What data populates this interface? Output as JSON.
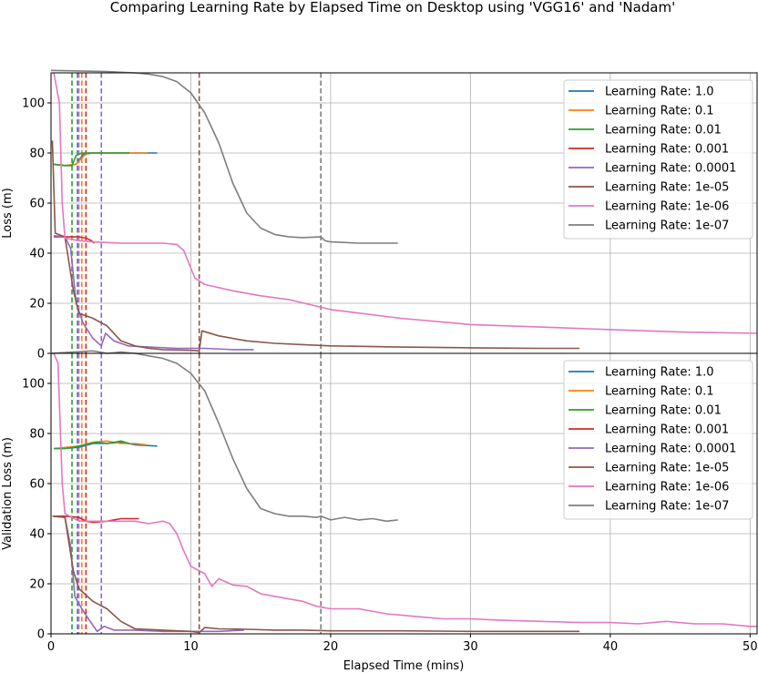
{
  "chart_data": {
    "type": "line",
    "title": "Comparing Learning Rate by Elapsed Time on Desktop using 'VGG16' and 'Nadam'",
    "xlabel": "Elapsed Time (mins)",
    "xlim": [
      0,
      50.5
    ],
    "x_ticks": [
      "0",
      "10",
      "20",
      "30",
      "40",
      "50"
    ],
    "grid": true,
    "legend_position": "top-right",
    "subplots": [
      {
        "ylabel": "Loss (m)",
        "ylim": [
          0,
          112
        ],
        "y_ticks": [
          "0",
          "20",
          "40",
          "60",
          "80",
          "100"
        ]
      },
      {
        "ylabel": "Validation Loss (m)",
        "ylim": [
          0,
          112
        ],
        "y_ticks": [
          "0",
          "20",
          "40",
          "60",
          "80",
          "100"
        ]
      }
    ],
    "series": [
      {
        "name": "Learning Rate: 1.0",
        "color": "#1f77b4",
        "vline": 1.9,
        "loss": [
          [
            0.2,
            75.5
          ],
          [
            1.0,
            75
          ],
          [
            1.8,
            75.5
          ],
          [
            2.3,
            79.5
          ],
          [
            3,
            80
          ],
          [
            5,
            80
          ],
          [
            6.5,
            80
          ],
          [
            7.6,
            80
          ]
        ],
        "val_loss": [
          [
            0.2,
            74
          ],
          [
            1.0,
            74
          ],
          [
            2,
            74.5
          ],
          [
            3,
            76
          ],
          [
            4,
            76
          ],
          [
            5,
            76.5
          ],
          [
            6,
            75.5
          ],
          [
            7.6,
            75
          ]
        ]
      },
      {
        "name": "Learning Rate: 0.1",
        "color": "#ff7f0e",
        "vline": 2.2,
        "loss": [
          [
            0.2,
            75.5
          ],
          [
            1.0,
            75
          ],
          [
            1.8,
            75.5
          ],
          [
            2.2,
            78
          ],
          [
            2.6,
            80
          ],
          [
            4,
            80
          ],
          [
            6,
            80
          ],
          [
            6.9,
            80
          ]
        ],
        "val_loss": [
          [
            0.2,
            74
          ],
          [
            1.2,
            74.5
          ],
          [
            2,
            75
          ],
          [
            3,
            76.5
          ],
          [
            4,
            77
          ],
          [
            5,
            76
          ],
          [
            6,
            76
          ],
          [
            6.8,
            75.5
          ]
        ]
      },
      {
        "name": "Learning Rate: 0.01",
        "color": "#2ca02c",
        "vline": 1.5,
        "loss": [
          [
            0.2,
            75.5
          ],
          [
            1.0,
            75
          ],
          [
            1.5,
            75
          ],
          [
            1.8,
            79
          ],
          [
            2.2,
            80
          ],
          [
            3,
            80
          ],
          [
            4,
            80
          ],
          [
            5.6,
            80
          ]
        ],
        "val_loss": [
          [
            0.2,
            74
          ],
          [
            1.0,
            74
          ],
          [
            1.6,
            74.5
          ],
          [
            2.4,
            75.5
          ],
          [
            3.2,
            76.5
          ],
          [
            4,
            76
          ],
          [
            5,
            77
          ],
          [
            5.6,
            76
          ]
        ]
      },
      {
        "name": "Learning Rate: 0.001",
        "color": "#d62728",
        "vline": 2.5,
        "loss": [
          [
            0.2,
            46.5
          ],
          [
            1,
            46.5
          ],
          [
            2,
            46.5
          ],
          [
            2.5,
            46
          ],
          [
            2.9,
            45
          ],
          [
            3.1,
            44
          ]
        ],
        "val_loss": [
          [
            0.2,
            47
          ],
          [
            1,
            47
          ],
          [
            2,
            46.5
          ],
          [
            2.5,
            45
          ],
          [
            3,
            44.5
          ],
          [
            4,
            45
          ],
          [
            5,
            46
          ],
          [
            6.3,
            46
          ]
        ]
      },
      {
        "name": "Learning Rate: 0.0001",
        "color": "#9467bd",
        "vline": 3.6,
        "loss": [
          [
            0.2,
            47
          ],
          [
            1,
            46.5
          ],
          [
            1.4,
            42
          ],
          [
            1.8,
            20
          ],
          [
            2.3,
            12
          ],
          [
            3,
            6
          ],
          [
            3.6,
            3
          ],
          [
            3.9,
            8
          ],
          [
            4.5,
            5
          ],
          [
            5.5,
            3
          ],
          [
            7,
            2.5
          ],
          [
            9,
            2
          ],
          [
            11,
            2
          ],
          [
            13,
            1.5
          ],
          [
            14.5,
            1.5
          ]
        ],
        "val_loss": [
          [
            0.2,
            47
          ],
          [
            1,
            46.5
          ],
          [
            1.4,
            35
          ],
          [
            1.7,
            15
          ],
          [
            2.2,
            10
          ],
          [
            2.8,
            5
          ],
          [
            3.3,
            1
          ],
          [
            3.8,
            3
          ],
          [
            4.5,
            1.5
          ],
          [
            6,
            1.5
          ],
          [
            8,
            1
          ],
          [
            10,
            1
          ],
          [
            12,
            1
          ],
          [
            13.8,
            1.5
          ]
        ]
      },
      {
        "name": "Learning Rate: 1e-05",
        "color": "#8c564b",
        "vline": 10.6,
        "loss": [
          [
            0.1,
            85
          ],
          [
            0.3,
            48
          ],
          [
            1,
            46.5
          ],
          [
            1.6,
            25
          ],
          [
            2,
            16
          ],
          [
            3,
            14
          ],
          [
            4,
            11
          ],
          [
            5,
            5
          ],
          [
            6,
            3
          ],
          [
            7,
            2
          ],
          [
            8,
            1.5
          ],
          [
            10,
            1.2
          ],
          [
            10.6,
            1
          ],
          [
            10.8,
            9
          ],
          [
            12,
            7
          ],
          [
            14,
            5
          ],
          [
            16,
            4
          ],
          [
            18,
            3.5
          ],
          [
            20,
            3
          ],
          [
            25,
            2.5
          ],
          [
            30,
            2.2
          ],
          [
            35,
            2
          ],
          [
            37.8,
            2
          ]
        ],
        "val_loss": [
          [
            0.1,
            47
          ],
          [
            1,
            46.5
          ],
          [
            1.6,
            25
          ],
          [
            2,
            18
          ],
          [
            3,
            13
          ],
          [
            4,
            10
          ],
          [
            5,
            5
          ],
          [
            6,
            2
          ],
          [
            8,
            1.5
          ],
          [
            10,
            1
          ],
          [
            10.6,
            0.5
          ],
          [
            11,
            2.5
          ],
          [
            12,
            2
          ],
          [
            14,
            1.8
          ],
          [
            16,
            1.5
          ],
          [
            18,
            1.5
          ],
          [
            20,
            1.2
          ],
          [
            25,
            1.2
          ],
          [
            30,
            1
          ],
          [
            35,
            1
          ],
          [
            37.8,
            1
          ]
        ]
      },
      {
        "name": "Learning Rate: 1e-06",
        "color": "#e377c2",
        "vline": 2.0,
        "loss": [
          [
            0.2,
            112
          ],
          [
            0.6,
            100
          ],
          [
            0.8,
            60
          ],
          [
            1,
            46
          ],
          [
            2,
            45
          ],
          [
            3,
            44.5
          ],
          [
            5,
            44
          ],
          [
            8,
            44
          ],
          [
            9,
            43.5
          ],
          [
            9.5,
            41
          ],
          [
            10,
            34
          ],
          [
            10.3,
            30
          ],
          [
            11,
            27.5
          ],
          [
            13,
            25
          ],
          [
            15,
            23
          ],
          [
            17,
            21.5
          ],
          [
            20,
            17.5
          ],
          [
            25,
            14
          ],
          [
            30,
            11.5
          ],
          [
            35,
            10.5
          ],
          [
            40,
            9.5
          ],
          [
            45,
            8.5
          ],
          [
            50.5,
            8
          ]
        ],
        "val_loss": [
          [
            0.2,
            112
          ],
          [
            0.5,
            108
          ],
          [
            0.8,
            60
          ],
          [
            1,
            48
          ],
          [
            2,
            45
          ],
          [
            4,
            45
          ],
          [
            6,
            45
          ],
          [
            7,
            44
          ],
          [
            8,
            45
          ],
          [
            8.5,
            44
          ],
          [
            9,
            40
          ],
          [
            9.5,
            33
          ],
          [
            10,
            27
          ],
          [
            11,
            24
          ],
          [
            11.5,
            19
          ],
          [
            12,
            22
          ],
          [
            13,
            19.5
          ],
          [
            14,
            19
          ],
          [
            15,
            16
          ],
          [
            16,
            15
          ],
          [
            18,
            13
          ],
          [
            19,
            11
          ],
          [
            20,
            10
          ],
          [
            22,
            10
          ],
          [
            24,
            8
          ],
          [
            26,
            7
          ],
          [
            28,
            6
          ],
          [
            30,
            6
          ],
          [
            32,
            5.5
          ],
          [
            35,
            5
          ],
          [
            38,
            4.5
          ],
          [
            40,
            4.5
          ],
          [
            42,
            4
          ],
          [
            44,
            5
          ],
          [
            46,
            4
          ],
          [
            48,
            4
          ],
          [
            50,
            3
          ],
          [
            50.5,
            3
          ]
        ]
      },
      {
        "name": "Learning Rate: 1e-07",
        "color": "#7f7f7f",
        "vline": 19.3,
        "loss": [
          [
            0,
            113
          ],
          [
            4,
            112.5
          ],
          [
            6,
            112
          ],
          [
            7,
            111.5
          ],
          [
            8,
            110.5
          ],
          [
            9,
            108.5
          ],
          [
            10,
            104
          ],
          [
            11,
            96
          ],
          [
            12,
            84
          ],
          [
            13,
            68
          ],
          [
            14,
            56
          ],
          [
            15,
            50
          ],
          [
            16,
            47.5
          ],
          [
            17,
            46.5
          ],
          [
            18,
            46.2
          ],
          [
            19.3,
            46.5
          ],
          [
            19.6,
            45
          ],
          [
            20,
            44.5
          ],
          [
            22,
            44
          ],
          [
            24,
            44
          ],
          [
            24.8,
            44
          ]
        ],
        "val_loss": [
          [
            0,
            112
          ],
          [
            3,
            113
          ],
          [
            4,
            112
          ],
          [
            5,
            112.5
          ],
          [
            6,
            112
          ],
          [
            7,
            111
          ],
          [
            8,
            110
          ],
          [
            9,
            108
          ],
          [
            10,
            104
          ],
          [
            11,
            97
          ],
          [
            12,
            84
          ],
          [
            13,
            70
          ],
          [
            14,
            58
          ],
          [
            15,
            50
          ],
          [
            16,
            48
          ],
          [
            17,
            47
          ],
          [
            18,
            47
          ],
          [
            19,
            46.5
          ],
          [
            19.3,
            47
          ],
          [
            20,
            45.5
          ],
          [
            21,
            46.5
          ],
          [
            22,
            45.5
          ],
          [
            23,
            46
          ],
          [
            24,
            45
          ],
          [
            24.8,
            45.5
          ]
        ]
      }
    ]
  }
}
